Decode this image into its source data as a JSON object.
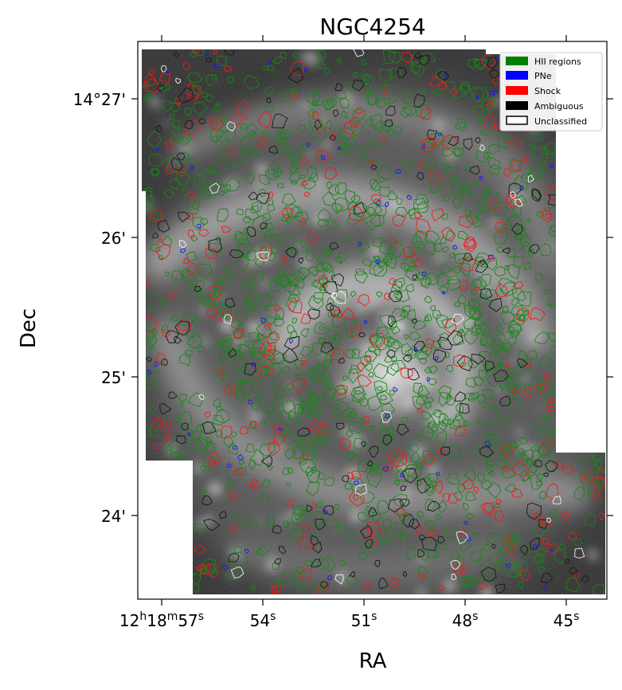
{
  "figure": {
    "title": "NGC4254",
    "xlabel": "RA",
    "ylabel": "Dec"
  },
  "ra_ticks": [
    {
      "main": "12",
      "h": "h",
      "main2": "18",
      "m": "m",
      "main3": "57",
      "s": "s"
    },
    {
      "value": "54",
      "unit": "s"
    },
    {
      "value": "51",
      "unit": "s"
    },
    {
      "value": "48",
      "unit": "s"
    },
    {
      "value": "45",
      "unit": "s"
    }
  ],
  "dec_ticks": [
    {
      "label": "14°27'"
    },
    {
      "label": "26'"
    },
    {
      "label": "25'"
    },
    {
      "label": "24'"
    }
  ],
  "legend": {
    "items": [
      {
        "label": "HII regions",
        "color": "#008000",
        "style": "filled"
      },
      {
        "label": "PNe",
        "color": "#0000ff",
        "style": "filled"
      },
      {
        "label": "Shock",
        "color": "#ff0000",
        "style": "filled"
      },
      {
        "label": "Ambiguous",
        "color": "#000000",
        "style": "filled"
      },
      {
        "label": "Unclassified",
        "color": "#ffffff",
        "style": "outline"
      }
    ]
  },
  "colors": {
    "hii": "#008000",
    "pne": "#0000ff",
    "shock": "#ff0000",
    "ambiguous": "#000000",
    "unclassified": "#ffffff"
  }
}
